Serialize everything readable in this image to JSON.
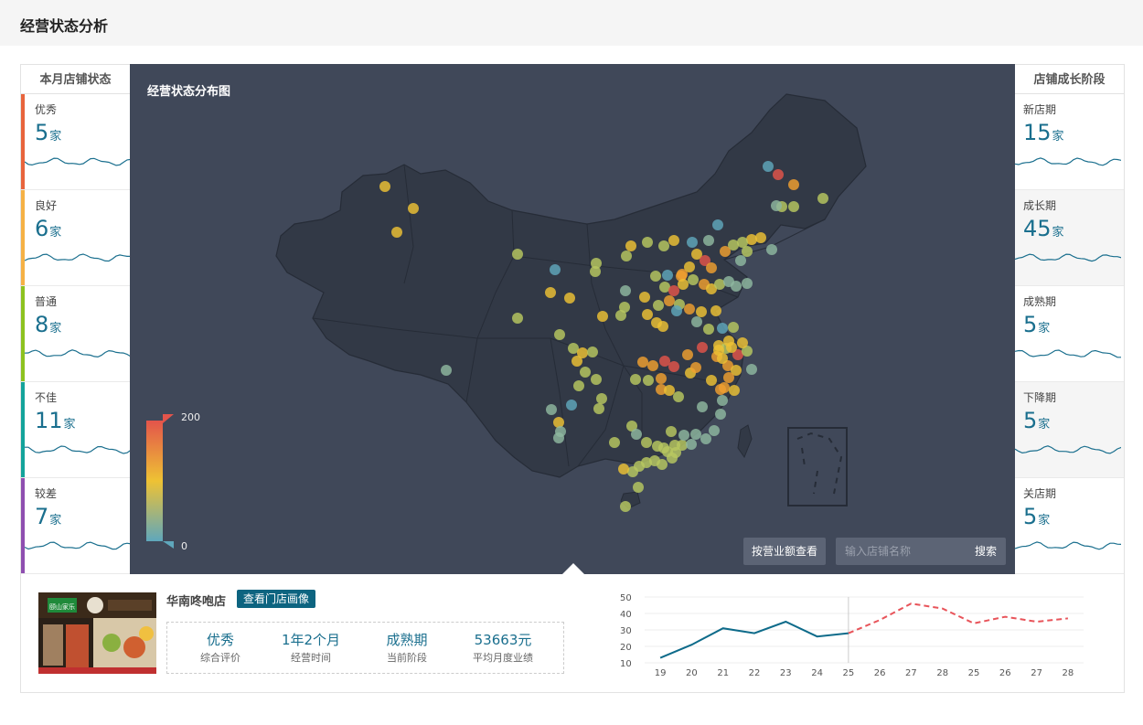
{
  "page": {
    "title": "经营状态分析"
  },
  "left_panel": {
    "header": "本月店铺状态",
    "items": [
      {
        "label": "优秀",
        "count": "5",
        "unit": "家",
        "color": "#e8643c"
      },
      {
        "label": "良好",
        "count": "6",
        "unit": "家",
        "color": "#f5b145"
      },
      {
        "label": "普通",
        "count": "8",
        "unit": "家",
        "color": "#8dc21f"
      },
      {
        "label": "不佳",
        "count": "11",
        "unit": "家",
        "color": "#13a39b"
      },
      {
        "label": "较差",
        "count": "7",
        "unit": "家",
        "color": "#8e4fb0"
      }
    ]
  },
  "right_panel": {
    "header": "店铺成长阶段",
    "items": [
      {
        "label": "新店期",
        "count": "15",
        "unit": "家"
      },
      {
        "label": "成长期",
        "count": "45",
        "unit": "家"
      },
      {
        "label": "成熟期",
        "count": "5",
        "unit": "家"
      },
      {
        "label": "下降期",
        "count": "5",
        "unit": "家"
      },
      {
        "label": "关店期",
        "count": "5",
        "unit": "家"
      }
    ]
  },
  "map": {
    "title": "经营状态分布图",
    "legend": {
      "max": "200",
      "min": "0",
      "colors": [
        "#e3544b",
        "#eec234",
        "#5fa7bc"
      ]
    },
    "metric_button": "按营业额查看",
    "search_placeholder": "输入店铺名称",
    "search_button": "搜索"
  },
  "store": {
    "name": "华南咚咆店",
    "profile_button": "查看门店画像",
    "sign_text": "颐山家乐",
    "metrics": [
      {
        "value": "优秀",
        "label": "综合评价"
      },
      {
        "value": "1年2个月",
        "label": "经营时间"
      },
      {
        "value": "成熟期",
        "label": "当前阶段"
      },
      {
        "value": "53663元",
        "label": "平均月度业绩"
      }
    ]
  },
  "chart_data": {
    "type": "line",
    "categories": [
      "19",
      "20",
      "21",
      "22",
      "23",
      "24",
      "25",
      "26",
      "27",
      "28",
      "25",
      "26",
      "27",
      "28"
    ],
    "series": [
      {
        "values": [
          13,
          21,
          31,
          28,
          35,
          26,
          28,
          null,
          null,
          null,
          null,
          null,
          null,
          null
        ],
        "color": "#0e6b8a",
        "style": "solid"
      },
      {
        "values": [
          null,
          null,
          null,
          null,
          null,
          null,
          28,
          36,
          46,
          43,
          34,
          38,
          35,
          37
        ],
        "color": "#e8545a",
        "style": "dashed"
      }
    ],
    "yticks": [
      10,
      20,
      30,
      40,
      50
    ],
    "ylim": [
      10,
      50
    ],
    "grid": true
  }
}
